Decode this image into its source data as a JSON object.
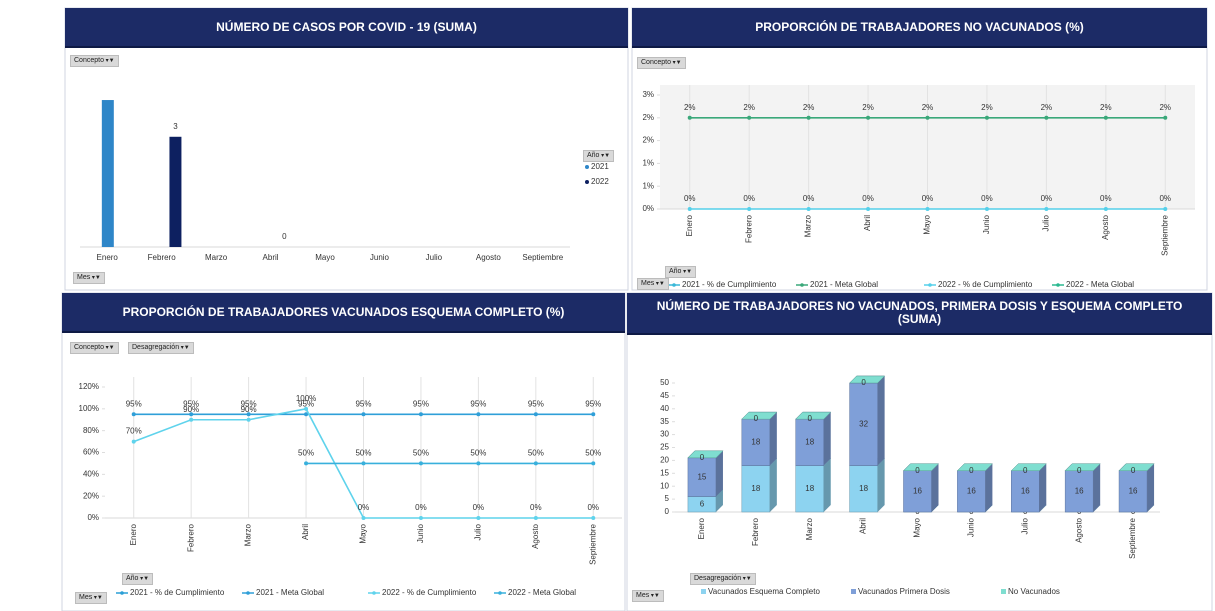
{
  "chart_data": [
    {
      "type": "bar",
      "title": "NÚMERO DE CASOS POR COVID - 19 (SUMA)",
      "filters": [
        "Concepto",
        "Mes"
      ],
      "legend_title": "Año",
      "categories": [
        "Enero",
        "Febrero",
        "Marzo",
        "Abril",
        "Mayo",
        "Junio",
        "Julio",
        "Agosto",
        "Septiembre"
      ],
      "series": [
        {
          "name": "2021",
          "color": "#2e86c8",
          "values": [
            4,
            null,
            null,
            null,
            null,
            null,
            null,
            null,
            null
          ],
          "value_labels": [
            null,
            null,
            null,
            null,
            null,
            null,
            null,
            null,
            null
          ]
        },
        {
          "name": "2022",
          "color": "#0d2060",
          "values": [
            null,
            3,
            null,
            0,
            null,
            null,
            null,
            null,
            null
          ],
          "value_labels": [
            null,
            "3",
            null,
            "0",
            null,
            null,
            null,
            null,
            null
          ]
        }
      ]
    },
    {
      "type": "line",
      "title": "PROPORCIÓN DE TRABAJADORES NO VACUNADOS (%)",
      "filters": [
        "Concepto",
        "Mes"
      ],
      "legend_title": "Año",
      "categories": [
        "Enero",
        "Febrero",
        "Marzo",
        "Abril",
        "Mayo",
        "Junio",
        "Julio",
        "Agosto",
        "Septiembre"
      ],
      "ylim": [
        0,
        3
      ],
      "yticks": [
        {
          "value": 0,
          "label": "0%"
        },
        {
          "value": 0.6,
          "label": "1%"
        },
        {
          "value": 1.2,
          "label": "1%"
        },
        {
          "value": 1.8,
          "label": "2%"
        },
        {
          "value": 2.4,
          "label": "2%"
        },
        {
          "value": 3,
          "label": "3%"
        }
      ],
      "series": [
        {
          "name": "2021 - % de Cumplimiento",
          "color": "#3ab8d8",
          "values": [
            null,
            null,
            null,
            null,
            null,
            null,
            null,
            null,
            null
          ],
          "value_labels": [
            null,
            null,
            null,
            null,
            null,
            null,
            null,
            null,
            null
          ]
        },
        {
          "name": "2021 - Meta Global",
          "color": "#3aa87a",
          "values": [
            2.4,
            2.4,
            2.4,
            2.4,
            2.4,
            2.4,
            2.4,
            2.4,
            2.4
          ],
          "value_labels": [
            "2%",
            "2%",
            "2%",
            "2%",
            "2%",
            "2%",
            "2%",
            "2%",
            "2%"
          ]
        },
        {
          "name": "2022 - % de Cumplimiento",
          "color": "#55d0ea",
          "values": [
            0,
            0,
            0,
            0,
            0,
            0,
            0,
            0,
            0
          ],
          "value_labels": [
            "0%",
            "0%",
            "0%",
            "0%",
            "0%",
            "0%",
            "0%",
            "0%",
            "0%"
          ]
        },
        {
          "name": "2022 - Meta Global",
          "color": "#2ab890",
          "values": [
            null,
            null,
            null,
            null,
            null,
            null,
            null,
            null,
            null
          ],
          "value_labels": [
            null,
            null,
            null,
            null,
            null,
            null,
            null,
            null,
            null
          ]
        }
      ]
    },
    {
      "type": "line",
      "title": "PROPORCIÓN DE TRABAJADORES VACUNADOS ESQUEMA COMPLETO (%)",
      "filters": [
        "Concepto",
        "Desagregación",
        "Mes"
      ],
      "legend_title": "Año",
      "categories": [
        "Enero",
        "Febrero",
        "Marzo",
        "Abril",
        "Mayo",
        "Junio",
        "Julio",
        "Agosto",
        "Septiembre"
      ],
      "ylim": [
        0,
        120
      ],
      "yticks": [
        {
          "value": 0,
          "label": "0%"
        },
        {
          "value": 20,
          "label": "20%"
        },
        {
          "value": 40,
          "label": "40%"
        },
        {
          "value": 60,
          "label": "60%"
        },
        {
          "value": 80,
          "label": "80%"
        },
        {
          "value": 100,
          "label": "100%"
        },
        {
          "value": 120,
          "label": "120%"
        }
      ],
      "series": [
        {
          "name": "2021 - % de Cumplimiento",
          "color": "#2a9fd6",
          "values": [
            null,
            null,
            null,
            null,
            null,
            null,
            null,
            null,
            null
          ],
          "value_labels": [
            null,
            null,
            null,
            null,
            null,
            null,
            null,
            null,
            null
          ]
        },
        {
          "name": "2021 - Meta Global",
          "color": "#2f9fd8",
          "values": [
            95,
            95,
            95,
            95,
            95,
            95,
            95,
            95,
            95
          ],
          "value_labels": [
            "95%",
            "95%",
            "95%",
            "95%",
            "95%",
            "95%",
            "95%",
            "95%",
            "95%"
          ]
        },
        {
          "name": "2022 - % de Cumplimiento",
          "color": "#5fd3ec",
          "values": [
            70,
            90,
            90,
            100,
            0,
            0,
            0,
            0,
            0
          ],
          "value_labels": [
            "70%",
            "90%",
            "90%",
            "100%",
            "0%",
            "0%",
            "0%",
            "0%",
            "0%"
          ]
        },
        {
          "name": "2022 - Meta Global",
          "color": "#38b0dc",
          "values": [
            null,
            null,
            null,
            50,
            50,
            50,
            50,
            50,
            50
          ],
          "value_labels": [
            null,
            null,
            null,
            "50%",
            "50%",
            "50%",
            "50%",
            "50%",
            "50%"
          ]
        }
      ]
    },
    {
      "type": "bar3d",
      "title": "NÚMERO DE TRABAJADORES NO VACUNADOS, PRIMERA DOSIS Y ESQUEMA COMPLETO (SUMA)",
      "filters": [
        "Mes"
      ],
      "legend_title": "Desagregación",
      "categories": [
        "Enero",
        "Febrero",
        "Marzo",
        "Abril",
        "Mayo",
        "Junio",
        "Julio",
        "Agosto",
        "Septiembre"
      ],
      "ylim": [
        0,
        50
      ],
      "yticks": [
        0,
        5,
        10,
        15,
        20,
        25,
        30,
        35,
        40,
        45,
        50
      ],
      "series": [
        {
          "name": "Vacunados Esquema Completo",
          "color": "#8dd3f0",
          "values": [
            6,
            18,
            18,
            18,
            0,
            0,
            0,
            0,
            0
          ]
        },
        {
          "name": "Vacunados Primera Dosis",
          "color": "#7f9fd8",
          "values": [
            15,
            18,
            18,
            32,
            16,
            16,
            16,
            16,
            16
          ]
        },
        {
          "name": "No Vacunados",
          "color": "#7fded0",
          "values": [
            0,
            0,
            0,
            0,
            0,
            0,
            0,
            0,
            0
          ]
        }
      ]
    }
  ]
}
